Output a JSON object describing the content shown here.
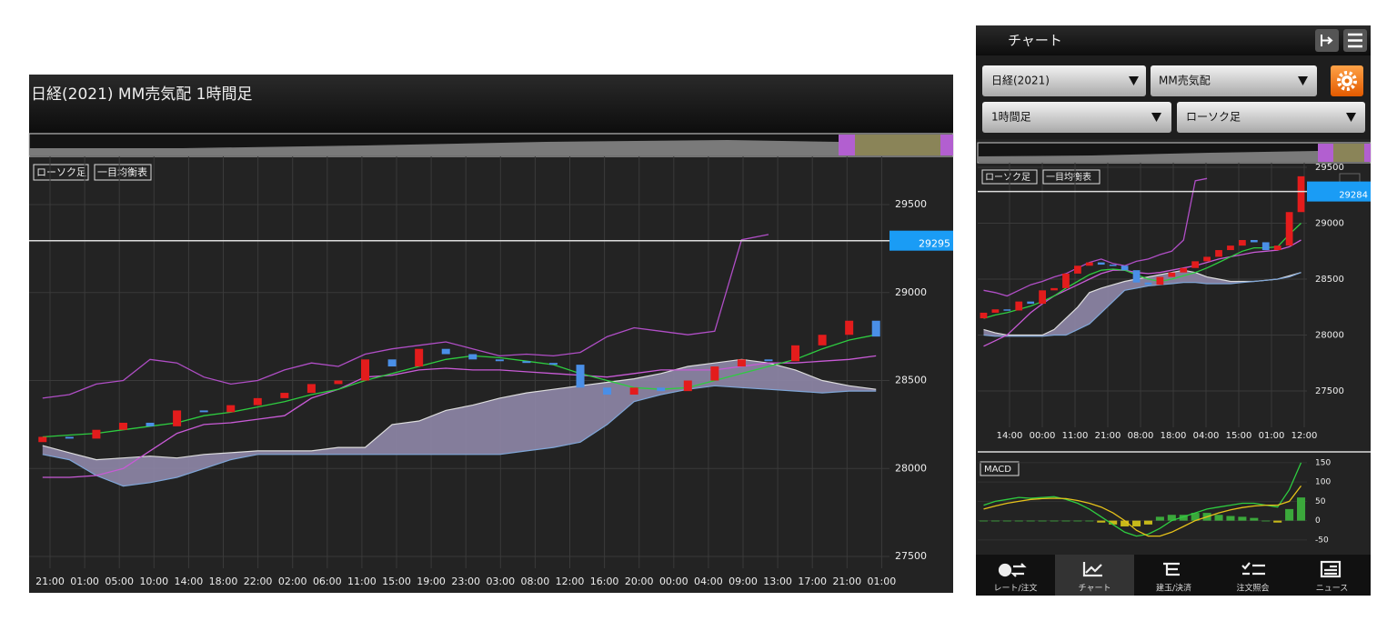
{
  "colors": {
    "up": "#e31c1c",
    "down": "#4a8fe7",
    "conversion": "#2ecc40",
    "base": "#c85ad6",
    "lagging": "#b04ec6",
    "cloud": "#8f87a8",
    "span_a": "#dddddd",
    "span_b": "#7fa6d8",
    "macd": "#2ecc40",
    "signal": "#e6c21a",
    "hist_up": "#3ba83b",
    "hist_down": "#c7b91a",
    "price_box": "#1a9cf5"
  },
  "left": {
    "title": "日経(2021) MM売気配 1時間足",
    "legend": [
      "ローソク足",
      "一目均衡表"
    ],
    "chart": {
      "ylim": [
        27433,
        29774
      ],
      "yticks": [
        27500,
        28000,
        28500,
        29000,
        29500
      ],
      "price": 29295,
      "xlabels": [
        "21:00",
        "01:00",
        "05:00",
        "10:00",
        "14:00",
        "18:00",
        "22:00",
        "02:00",
        "06:00",
        "11:00",
        "15:00",
        "19:00",
        "23:00",
        "03:00",
        "08:00",
        "12:00",
        "16:00",
        "20:00",
        "00:00",
        "04:00",
        "09:00",
        "13:00",
        "17:00",
        "21:00",
        "01:00"
      ],
      "open": [
        28150,
        28180,
        28170,
        28220,
        28260,
        28240,
        28330,
        28320,
        28360,
        28400,
        28430,
        28480,
        28500,
        28620,
        28580,
        28680,
        28650,
        28620,
        28610,
        28600,
        28590,
        28460,
        28420,
        28460,
        28440,
        28500,
        28580,
        28620,
        28610,
        28700,
        28760,
        28840
      ],
      "close": [
        28180,
        28170,
        28220,
        28260,
        28240,
        28330,
        28320,
        28360,
        28400,
        28430,
        28480,
        28500,
        28620,
        28580,
        28680,
        28650,
        28620,
        28610,
        28600,
        28590,
        28460,
        28420,
        28460,
        28440,
        28500,
        28580,
        28620,
        28610,
        28700,
        28760,
        28840,
        28750
      ],
      "conversion": [
        28180,
        28190,
        28200,
        28220,
        28240,
        28260,
        28300,
        28320,
        28350,
        28380,
        28420,
        28450,
        28500,
        28540,
        28580,
        28620,
        28640,
        28630,
        28610,
        28590,
        28540,
        28500,
        28460,
        28450,
        28460,
        28500,
        28540,
        28580,
        28620,
        28680,
        28730,
        28760
      ],
      "base": [
        27950,
        27950,
        27960,
        28000,
        28100,
        28200,
        28250,
        28260,
        28280,
        28300,
        28400,
        28450,
        28520,
        28530,
        28560,
        28570,
        28560,
        28560,
        28550,
        28540,
        28530,
        28520,
        28540,
        28560,
        28560,
        28560,
        28580,
        28600,
        28600,
        28610,
        28620,
        28640
      ],
      "lagging": [
        28400,
        28420,
        28480,
        28500,
        28620,
        28600,
        28520,
        28480,
        28500,
        28560,
        28600,
        28580,
        28650,
        28680,
        28700,
        28720,
        28680,
        28640,
        28650,
        28640,
        28660,
        28750,
        28800,
        28780,
        28760,
        28780,
        29300,
        29330,
        null,
        null,
        null,
        null
      ],
      "span_a": [
        28130,
        28090,
        28050,
        28060,
        28070,
        28060,
        28080,
        28090,
        28100,
        28100,
        28100,
        28120,
        28120,
        28250,
        28270,
        28330,
        28360,
        28400,
        28430,
        28450,
        28470,
        28490,
        28510,
        28540,
        28580,
        28600,
        28620,
        28600,
        28560,
        28500,
        28470,
        28450
      ],
      "span_b": [
        28080,
        28050,
        27960,
        27900,
        27920,
        27950,
        28000,
        28050,
        28080,
        28080,
        28080,
        28080,
        28080,
        28080,
        28080,
        28080,
        28080,
        28080,
        28100,
        28120,
        28150,
        28250,
        28380,
        28420,
        28450,
        28470,
        28460,
        28450,
        28440,
        28430,
        28440,
        28440
      ]
    }
  },
  "right": {
    "header_title": "チャート",
    "selectors": [
      "日経(2021)",
      "MM売気配",
      "1時間足",
      "ローソク足"
    ],
    "legend": [
      "ローソク足",
      "一目均衡表"
    ],
    "chart": {
      "ylim": [
        27175,
        29541
      ],
      "yticks": [
        27500,
        28000,
        28500,
        29000,
        29500
      ],
      "price": 29284,
      "xlabels": [
        "14:00",
        "00:00",
        "11:00",
        "21:00",
        "08:00",
        "18:00",
        "04:00",
        "15:00",
        "01:00",
        "12:00"
      ],
      "open": [
        28150,
        28200,
        28230,
        28220,
        28300,
        28280,
        28400,
        28420,
        28550,
        28620,
        28650,
        28630,
        28620,
        28580,
        28470,
        28450,
        28520,
        28560,
        28600,
        28660,
        28700,
        28760,
        28800,
        28850,
        28830,
        28760,
        28800,
        29100
      ],
      "close": [
        28200,
        28230,
        28220,
        28300,
        28280,
        28400,
        28420,
        28550,
        28620,
        28650,
        28630,
        28620,
        28580,
        28470,
        28450,
        28520,
        28560,
        28600,
        28660,
        28700,
        28760,
        28800,
        28850,
        28830,
        28760,
        28800,
        29100,
        29420
      ],
      "conversion": [
        28150,
        28180,
        28200,
        28230,
        28260,
        28300,
        28350,
        28420,
        28480,
        28540,
        28580,
        28590,
        28580,
        28540,
        28500,
        28480,
        28500,
        28530,
        28560,
        28600,
        28650,
        28700,
        28750,
        28780,
        28780,
        28790,
        28900,
        29000
      ],
      "base": [
        27900,
        27950,
        28000,
        28100,
        28200,
        28280,
        28350,
        28400,
        28450,
        28500,
        28550,
        28580,
        28580,
        28560,
        28550,
        28560,
        28580,
        28600,
        28620,
        28650,
        28680,
        28700,
        28720,
        28740,
        28750,
        28760,
        28790,
        28850
      ],
      "lagging": [
        28400,
        28380,
        28350,
        28400,
        28450,
        28480,
        28520,
        28550,
        28600,
        28650,
        28680,
        28640,
        28620,
        28660,
        28680,
        28720,
        28750,
        28850,
        29380,
        29400,
        null,
        null,
        null,
        null,
        null,
        null,
        null,
        null
      ],
      "span_a": [
        28050,
        28020,
        28000,
        28000,
        28000,
        28000,
        28050,
        28150,
        28250,
        28380,
        28420,
        28450,
        28480,
        28500,
        28520,
        28540,
        28560,
        28580,
        28560,
        28520,
        28500,
        28480,
        28480,
        28480,
        28490,
        28500,
        28530,
        28560
      ],
      "span_b": [
        28000,
        27990,
        27990,
        27990,
        27990,
        27990,
        28000,
        28000,
        28050,
        28100,
        28200,
        28300,
        28400,
        28420,
        28440,
        28450,
        28460,
        28470,
        28470,
        28460,
        28460,
        28460,
        28470,
        28480,
        28490,
        28500,
        28520,
        28560
      ]
    },
    "macd": {
      "label": "MACD",
      "ylim": [
        -81,
        171
      ],
      "yticks": [
        -50,
        0,
        50,
        100,
        150
      ],
      "macd": [
        40,
        50,
        55,
        60,
        58,
        60,
        62,
        55,
        45,
        30,
        10,
        -10,
        -30,
        -40,
        -35,
        -20,
        0,
        10,
        20,
        30,
        35,
        40,
        45,
        45,
        40,
        35,
        80,
        150
      ],
      "signal": [
        30,
        38,
        45,
        50,
        55,
        57,
        58,
        57,
        52,
        45,
        35,
        20,
        0,
        -25,
        -40,
        -40,
        -30,
        -15,
        0,
        10,
        20,
        28,
        34,
        38,
        40,
        40,
        50,
        90
      ],
      "histogram": [
        0,
        0,
        0,
        0,
        0,
        0,
        0,
        0,
        0,
        0,
        -5,
        -10,
        -15,
        -15,
        -10,
        10,
        15,
        15,
        20,
        20,
        15,
        12,
        10,
        7,
        0,
        -5,
        30,
        60
      ]
    },
    "tabs": [
      "レート/注文",
      "チャート",
      "建玉/決済",
      "注文照会",
      "ニュース"
    ]
  }
}
